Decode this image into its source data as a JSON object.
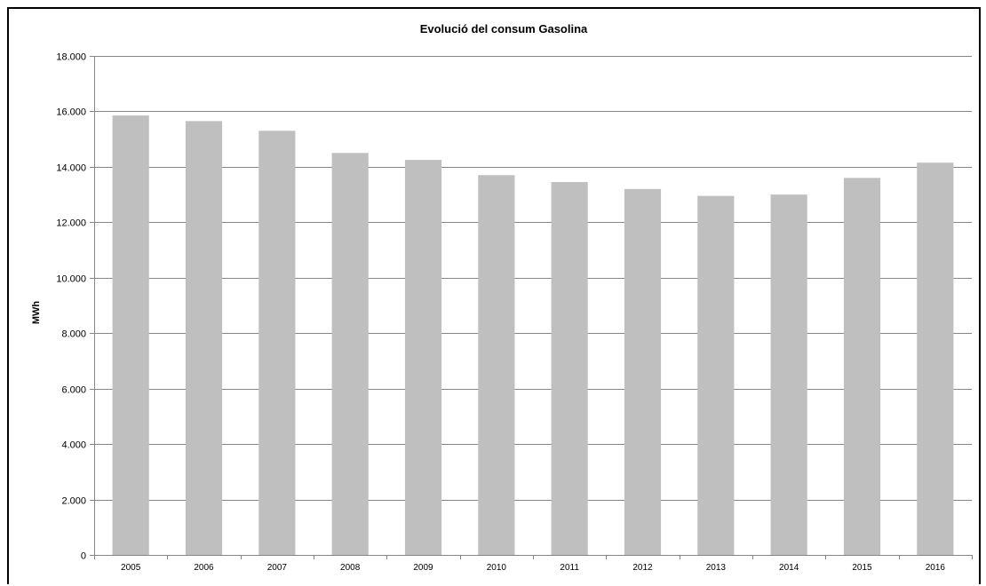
{
  "chart_data": {
    "type": "bar",
    "title": "Evolució del consum  Gasolina",
    "xlabel": "",
    "ylabel": "MWh",
    "ylim": [
      0,
      18000
    ],
    "yticks": [
      0,
      2000,
      4000,
      6000,
      8000,
      10000,
      12000,
      14000,
      16000,
      18000
    ],
    "ytick_labels": [
      "0",
      "2.000",
      "4.000",
      "6.000",
      "8.000",
      "10.000",
      "12.000",
      "14.000",
      "16.000",
      "18.000"
    ],
    "grid": true,
    "legend": "none",
    "categories": [
      "2005",
      "2006",
      "2007",
      "2008",
      "2009",
      "2010",
      "2011",
      "2012",
      "2013",
      "2014",
      "2015",
      "2016"
    ],
    "values": [
      15850,
      15650,
      15300,
      14500,
      14250,
      13700,
      13450,
      13200,
      12950,
      13000,
      13600,
      14150
    ],
    "colors": {
      "bar": "#bfbfbf",
      "grid": "#868686",
      "axis": "#868686",
      "text": "#000000"
    }
  }
}
